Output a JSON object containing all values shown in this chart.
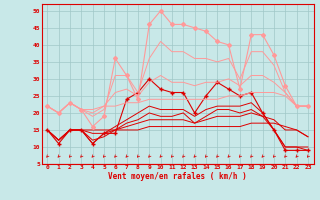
{
  "xlabel": "Vent moyen/en rafales ( km/h )",
  "background_color": "#c8e8e8",
  "grid_color": "#a0c8c8",
  "x_values": [
    0,
    1,
    2,
    3,
    4,
    5,
    6,
    7,
    8,
    9,
    10,
    11,
    12,
    13,
    14,
    15,
    16,
    17,
    18,
    19,
    20,
    21,
    22,
    23
  ],
  "ylim": [
    5,
    52
  ],
  "xlim": [
    -0.5,
    23.5
  ],
  "yticks": [
    5,
    10,
    15,
    20,
    25,
    30,
    35,
    40,
    45,
    50
  ],
  "series": [
    {
      "y": [
        15,
        11,
        15,
        15,
        11,
        14,
        14,
        24,
        26,
        30,
        27,
        26,
        26,
        20,
        25,
        29,
        27,
        25,
        26,
        20,
        15,
        9,
        9,
        9
      ],
      "color": "#dd0000",
      "marker": "+",
      "linewidth": 0.8,
      "markersize": 3
    },
    {
      "y": [
        15,
        12,
        15,
        15,
        11,
        14,
        16,
        18,
        20,
        22,
        21,
        21,
        21,
        19,
        21,
        22,
        22,
        22,
        23,
        20,
        15,
        10,
        10,
        10
      ],
      "color": "#dd0000",
      "marker": null,
      "linewidth": 0.7,
      "markersize": 0
    },
    {
      "y": [
        15,
        12,
        15,
        15,
        12,
        13,
        15,
        17,
        18,
        20,
        19,
        19,
        20,
        17,
        19,
        21,
        21,
        20,
        21,
        19,
        15,
        10,
        10,
        9
      ],
      "color": "#dd0000",
      "marker": null,
      "linewidth": 0.7,
      "markersize": 0
    },
    {
      "y": [
        15,
        12,
        15,
        15,
        14,
        14,
        15,
        16,
        17,
        18,
        18,
        18,
        18,
        17,
        18,
        19,
        19,
        19,
        20,
        19,
        18,
        15,
        15,
        13
      ],
      "color": "#dd0000",
      "marker": null,
      "linewidth": 0.7,
      "markersize": 0
    },
    {
      "y": [
        15,
        12,
        15,
        15,
        15,
        15,
        15,
        15,
        15,
        16,
        16,
        16,
        16,
        16,
        16,
        16,
        16,
        16,
        17,
        17,
        17,
        16,
        15,
        13
      ],
      "color": "#dd0000",
      "marker": null,
      "linewidth": 0.7,
      "markersize": 0
    },
    {
      "y": [
        22,
        20,
        23,
        21,
        16,
        19,
        36,
        31,
        24,
        46,
        50,
        46,
        46,
        45,
        44,
        41,
        40,
        27,
        43,
        43,
        37,
        28,
        22,
        22
      ],
      "color": "#ff9999",
      "marker": "D",
      "linewidth": 0.8,
      "markersize": 2
    },
    {
      "y": [
        22,
        20,
        23,
        21,
        19,
        21,
        31,
        31,
        26,
        36,
        41,
        38,
        38,
        36,
        36,
        35,
        36,
        30,
        38,
        38,
        34,
        26,
        22,
        22
      ],
      "color": "#ff9999",
      "marker": null,
      "linewidth": 0.7,
      "markersize": 0
    },
    {
      "y": [
        22,
        20,
        23,
        21,
        20,
        22,
        26,
        27,
        25,
        29,
        31,
        29,
        29,
        28,
        29,
        29,
        30,
        28,
        31,
        31,
        29,
        26,
        22,
        22
      ],
      "color": "#ff9999",
      "marker": null,
      "linewidth": 0.7,
      "markersize": 0
    },
    {
      "y": [
        22,
        20,
        23,
        21,
        21,
        22,
        22,
        23,
        23,
        24,
        24,
        24,
        24,
        24,
        24,
        24,
        25,
        25,
        26,
        26,
        26,
        25,
        22,
        22
      ],
      "color": "#ff9999",
      "marker": null,
      "linewidth": 0.7,
      "markersize": 0
    }
  ],
  "text_color": "#dd0000",
  "axis_color": "#dd0000",
  "tick_fontsize": 4.5,
  "xlabel_fontsize": 5.5
}
